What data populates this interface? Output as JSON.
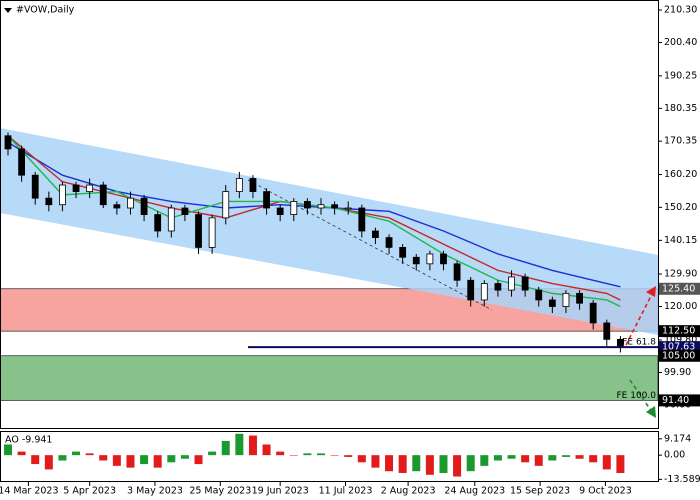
{
  "chart_data": [
    {
      "type": "candlestick",
      "title": "#VOW,Daily",
      "open": [
        172,
        168,
        160,
        153,
        151,
        157,
        155,
        157,
        151,
        150,
        153,
        148,
        143,
        150,
        148,
        138,
        147,
        155,
        159,
        155,
        150,
        148,
        152,
        150,
        151,
        150,
        150,
        143,
        141,
        138,
        135,
        133,
        136,
        133,
        128,
        122,
        127,
        125,
        129,
        125,
        122,
        120,
        124,
        121,
        115,
        110
      ],
      "high": [
        173,
        169,
        161,
        155,
        158,
        158,
        159,
        158,
        152,
        155,
        154,
        149,
        151,
        151,
        149,
        148,
        157,
        161,
        160,
        156,
        151,
        153,
        153,
        153,
        152,
        152,
        151,
        144,
        142,
        139,
        136,
        137,
        137,
        134,
        129,
        128,
        128,
        131,
        130,
        126,
        123,
        125,
        125,
        122,
        116,
        111
      ],
      "low": [
        166,
        158,
        151,
        149,
        149,
        153,
        153,
        150,
        148,
        148,
        146,
        141,
        141,
        146,
        136,
        136,
        145,
        153,
        153,
        148,
        146,
        146,
        148,
        148,
        148,
        148,
        141,
        139,
        136,
        133,
        131,
        131,
        131,
        126,
        120,
        120,
        123,
        123,
        123,
        120,
        118,
        118,
        119,
        113,
        108,
        106
      ],
      "close": [
        168,
        160,
        153,
        151,
        157,
        155,
        157,
        151,
        150,
        153,
        148,
        143,
        150,
        148,
        138,
        147,
        155,
        159,
        155,
        150,
        148,
        152,
        150,
        151,
        150,
        150,
        143,
        141,
        138,
        135,
        133,
        136,
        133,
        128,
        122,
        127,
        125,
        129,
        125,
        122,
        120,
        124,
        121,
        115,
        110,
        108
      ],
      "series": [
        {
          "color": "#1f2fd6",
          "x": [
            0,
            4,
            8,
            12,
            16,
            20,
            24,
            28,
            32,
            36,
            40,
            44,
            45
          ],
          "values": [
            170,
            160,
            155,
            152,
            150,
            151,
            150,
            149,
            143,
            136,
            131,
            127,
            126
          ]
        },
        {
          "color": "#c62828",
          "x": [
            0,
            4,
            8,
            12,
            16,
            20,
            24,
            28,
            32,
            36,
            40,
            44,
            45
          ],
          "values": [
            172,
            158,
            154,
            150,
            147,
            152,
            150,
            147,
            139,
            131,
            127,
            124,
            122
          ]
        },
        {
          "color": "#1db94a",
          "x": [
            0,
            4,
            8,
            12,
            16,
            20,
            24,
            28,
            32,
            36,
            40,
            44,
            45
          ],
          "values": [
            172,
            154,
            155,
            147,
            152,
            152,
            150,
            146,
            136,
            128,
            124,
            122,
            120
          ]
        }
      ],
      "xlim": [
        0,
        46
      ],
      "ylim": [
        83,
        213.35
      ],
      "xticks": [
        {
          "value": 1.5,
          "label": "14 Mar 2023"
        },
        {
          "value": 6,
          "label": "5 Apr 2023"
        },
        {
          "value": 10.8,
          "label": "3 May 2023"
        },
        {
          "value": 15.6,
          "label": "25 May 2023"
        },
        {
          "value": 20,
          "label": "19 Jun 2023"
        },
        {
          "value": 24.8,
          "label": "11 Jul 2023"
        },
        {
          "value": 29.4,
          "label": "2 Aug 2023"
        },
        {
          "value": 34.3,
          "label": "24 Aug 2023"
        },
        {
          "value": 39.1,
          "label": "15 Sep 2023"
        },
        {
          "value": 43.9,
          "label": "9 Oct 2023"
        }
      ],
      "yticks": [
        {
          "value": 210.3,
          "label": "210.30"
        },
        {
          "value": 200.4,
          "label": "200.40"
        },
        190.25,
        180.35,
        170.35,
        {
          "value": 160.2,
          "label": "160.20"
        },
        {
          "value": 150.2,
          "label": "150.20"
        },
        140.15,
        {
          "value": 129.9,
          "label": "129.90"
        },
        {
          "value": 120,
          "label": "120.00"
        },
        {
          "value": 109.8,
          "label": "109.80"
        },
        {
          "value": 99.9,
          "label": "99.90"
        },
        {
          "value": 90,
          "label": "90.00"
        }
      ],
      "zones": [
        {
          "from": 112.5,
          "to": 125.4,
          "color": "#f7a3a0"
        },
        {
          "from": 91.4,
          "to": 105,
          "color": "#86c28a"
        }
      ],
      "levels": [
        {
          "value": 125.4,
          "label": "125.40",
          "color": "#555"
        },
        {
          "value": 112.5,
          "label": "112.50",
          "color": "#000"
        },
        {
          "value": 107.63,
          "label": "107.63",
          "color": "#0b0b5e"
        },
        {
          "value": 105,
          "label": "105.00",
          "color": "#000"
        },
        {
          "value": 91.4,
          "label": "91.40",
          "color": "#000"
        }
      ],
      "annotations": [
        {
          "value": 107.63,
          "text": "FE 61.8"
        },
        {
          "value": 91.4,
          "text": "FE 100.0"
        }
      ]
    },
    {
      "type": "bar",
      "title": "AO -9.941",
      "values": [
        6,
        2,
        -5,
        -8,
        -3,
        2,
        1,
        -3,
        -6,
        -7,
        -5,
        -7,
        -4,
        -2,
        -5,
        2,
        8,
        12,
        11,
        6,
        2,
        0,
        1,
        1,
        0,
        -1,
        -4,
        -7,
        -9,
        -10,
        -9,
        -11,
        -10,
        -12,
        -9,
        -6,
        -3,
        -2,
        -4,
        -6,
        -3,
        -1,
        -2,
        -4,
        -8,
        -10
      ],
      "colors": {
        "up": "#1a9a2e",
        "down": "#e21b1b"
      },
      "ylim": [
        -14.5,
        13
      ],
      "yticks": [
        9.174,
        {
          "value": 0,
          "label": "0.00"
        },
        -13.589
      ]
    }
  ]
}
